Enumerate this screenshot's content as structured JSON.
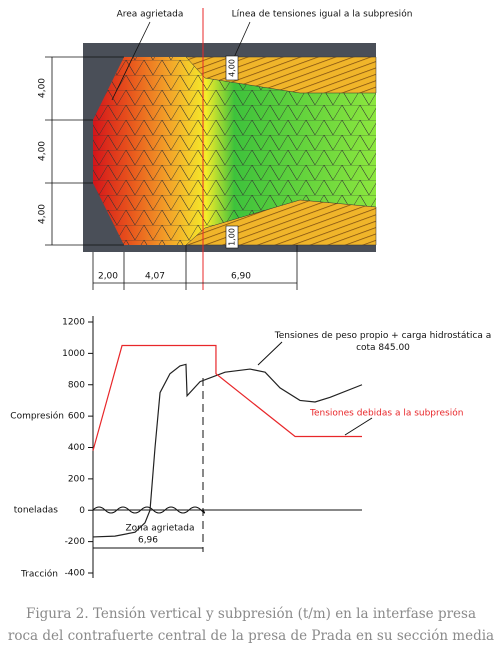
{
  "diagram": {
    "area_label": "Area agrietada",
    "line_label": "Línea de tensiones igual a la subpresión",
    "left_dims": [
      "4,00",
      "4,00",
      "4,00"
    ],
    "bottom_dims": [
      "2,00",
      "4,07",
      "6,90"
    ],
    "top_box": "4,00",
    "bottom_box": "1,00"
  },
  "chart_data": {
    "type": "line",
    "x": [
      0,
      1.4,
      2.68,
      3.31,
      3.63,
      3.95,
      4.27,
      4.9,
      5.54,
      5.92,
      5.99,
      6.82,
      8.41,
      10.0,
      10.96,
      11.91,
      13.18,
      14.14,
      15.1,
      17.13
    ],
    "xlim": [
      0,
      17.13
    ],
    "ylim": [
      -400,
      1200
    ],
    "yticks": [
      1200,
      1000,
      800,
      600,
      400,
      200,
      0,
      -200,
      -400
    ],
    "series": [
      {
        "name": "Tensiones de peso propio + carga hidrostática a cota 845.00",
        "color": "#222222",
        "values": [
          -170,
          -165,
          -140,
          -80,
          0,
          400,
          750,
          870,
          920,
          930,
          730,
          820,
          880,
          900,
          880,
          780,
          700,
          690,
          720,
          800
        ]
      },
      {
        "name": "Tensiones debidas a la subpresión",
        "color": "#e8272a",
        "x": [
          0,
          1.85,
          7.83,
          7.83,
          12.87,
          17.13
        ],
        "values": [
          380,
          1050,
          1050,
          870,
          470,
          470
        ]
      }
    ],
    "y_labels": [
      "Compresión",
      "toneladas",
      "Tracción"
    ],
    "annotations": [
      "Zona agrietada",
      "6,96"
    ]
  },
  "caption": [
    "Figura 2. Tensión vertical y subpresión (t/m) en la interfase presa",
    "roca del contrafuerte central de la presa de Prada en su sección media"
  ]
}
